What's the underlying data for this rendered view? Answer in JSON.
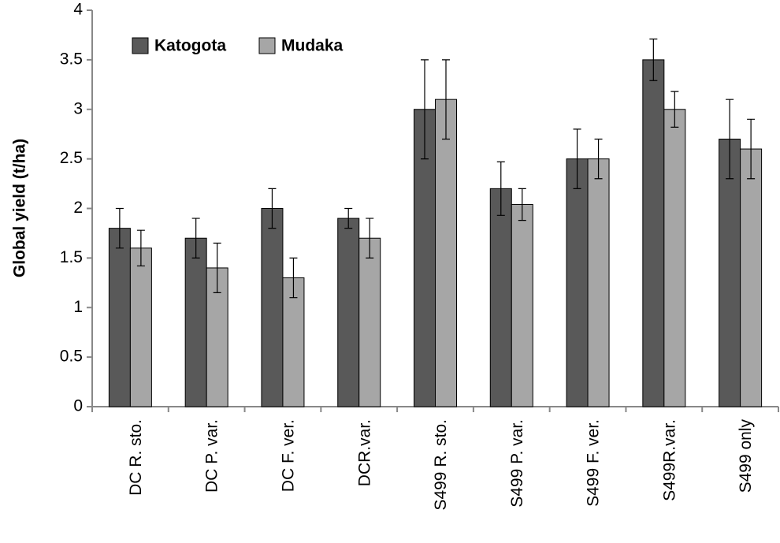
{
  "chart_data": {
    "type": "bar",
    "y_label": "Global yield (t/ha)",
    "categories": [
      "DC R. sto.",
      "DC P. var.",
      "DC F. ver.",
      "DCR.var.",
      "S499 R. sto.",
      "S499 P. var.",
      "S499 F. ver.",
      "S499R.var.",
      "S499 only"
    ],
    "series": [
      {
        "name": "Katogota",
        "color": "#595959",
        "values": [
          1.8,
          1.7,
          2.0,
          1.9,
          3.0,
          2.2,
          2.5,
          3.5,
          2.7
        ],
        "errors": [
          0.2,
          0.2,
          0.2,
          0.1,
          0.5,
          0.27,
          0.3,
          0.21,
          0.4
        ]
      },
      {
        "name": "Mudaka",
        "color": "#a6a6a6",
        "values": [
          1.6,
          1.4,
          1.3,
          1.7,
          3.1,
          2.04,
          2.5,
          3.0,
          2.6
        ],
        "errors": [
          0.18,
          0.25,
          0.2,
          0.2,
          0.4,
          0.16,
          0.2,
          0.18,
          0.3
        ]
      }
    ],
    "ylim": [
      0,
      4
    ],
    "yticks": [
      0,
      0.5,
      1,
      1.5,
      2,
      2.5,
      3,
      3.5,
      4
    ],
    "grid": false,
    "legend": "top-left"
  }
}
